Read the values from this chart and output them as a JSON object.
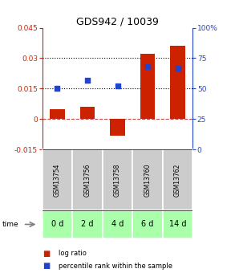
{
  "title": "GDS942 / 10039",
  "samples": [
    "GSM13754",
    "GSM13756",
    "GSM13758",
    "GSM13760",
    "GSM13762"
  ],
  "time_labels": [
    "0 d",
    "2 d",
    "4 d",
    "6 d",
    "14 d"
  ],
  "log_ratio": [
    0.005,
    0.006,
    -0.008,
    0.032,
    0.036
  ],
  "percentile_rank": [
    50,
    57,
    52,
    68,
    67
  ],
  "ylim_left": [
    -0.015,
    0.045
  ],
  "ylim_right": [
    0,
    100
  ],
  "yticks_left": [
    -0.015,
    0,
    0.015,
    0.03,
    0.045
  ],
  "yticks_right": [
    0,
    25,
    50,
    75,
    100
  ],
  "bar_color": "#cc2200",
  "dot_color": "#2244cc",
  "bar_width": 0.5,
  "hline_y_left": [
    0.015,
    0.03
  ],
  "zero_line_y": 0,
  "bg_color_samples": "#cccccc",
  "bg_color_time": "#aaffaa",
  "title_fontsize": 9,
  "tick_fontsize": 6.5,
  "legend_fontsize": 6
}
